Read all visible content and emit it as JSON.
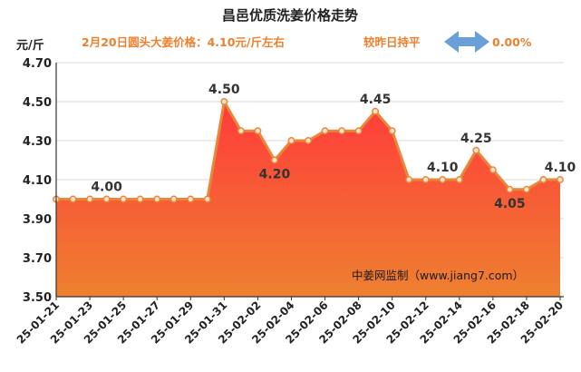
{
  "header": {
    "title": "昌邑优质洗姜价格走势",
    "price_note": "2月20日圆头大姜价格：4.10元/斤左右",
    "compare_label": "较昨日持平",
    "change_value": "0.00%"
  },
  "watermark": "中姜网监制（www.jiang7.com）",
  "colors": {
    "line": "#e8863a",
    "marker_fill": "#fbe3cc",
    "area_top": "#ff3b3b",
    "area_bottom": "#ee8030",
    "grid": "#d8d8d8",
    "arrow": "#6a9fd8",
    "subtitle": "#ee7f2d"
  },
  "icons": {
    "change_indicator": "double-arrow-icon"
  },
  "chart_data": {
    "type": "area",
    "title": "昌邑优质洗姜价格走势",
    "ylabel": "元/斤",
    "xlabel": "",
    "ylim": [
      3.5,
      4.7
    ],
    "y_ticks": [
      "3.50",
      "3.70",
      "3.90",
      "4.10",
      "4.30",
      "4.50",
      "4.70"
    ],
    "x": [
      "25-01-21",
      "25-01-22",
      "25-01-23",
      "25-01-24",
      "25-01-25",
      "25-01-26",
      "25-01-27",
      "25-01-28",
      "25-01-29",
      "25-01-30",
      "25-01-31",
      "25-02-01",
      "25-02-02",
      "25-02-03",
      "25-02-04",
      "25-02-05",
      "25-02-06",
      "25-02-07",
      "25-02-08",
      "25-02-09",
      "25-02-10",
      "25-02-11",
      "25-02-12",
      "25-02-13",
      "25-02-14",
      "25-02-15",
      "25-02-16",
      "25-02-17",
      "25-02-18",
      "25-02-19",
      "25-02-20"
    ],
    "x_tick_labels": [
      "25-01-21",
      "25-01-23",
      "25-01-25",
      "25-01-27",
      "25-01-29",
      "25-01-31",
      "25-02-02",
      "25-02-04",
      "25-02-06",
      "25-02-08",
      "25-02-10",
      "25-02-12",
      "25-02-14",
      "25-02-16",
      "25-02-18",
      "25-02-20"
    ],
    "values": [
      4.0,
      4.0,
      4.0,
      4.0,
      4.0,
      4.0,
      4.0,
      4.0,
      4.0,
      4.0,
      4.5,
      4.35,
      4.35,
      4.2,
      4.3,
      4.3,
      4.35,
      4.35,
      4.35,
      4.45,
      4.35,
      4.1,
      4.1,
      4.1,
      4.1,
      4.25,
      4.15,
      4.05,
      4.05,
      4.1,
      4.1
    ],
    "data_labels": [
      {
        "index": 3,
        "text": "4.00",
        "pos": "above"
      },
      {
        "index": 10,
        "text": "4.50",
        "pos": "above"
      },
      {
        "index": 13,
        "text": "4.20",
        "pos": "below"
      },
      {
        "index": 19,
        "text": "4.45",
        "pos": "above"
      },
      {
        "index": 23,
        "text": "4.10",
        "pos": "above"
      },
      {
        "index": 25,
        "text": "4.25",
        "pos": "above"
      },
      {
        "index": 27,
        "text": "4.05",
        "pos": "below"
      },
      {
        "index": 30,
        "text": "4.10",
        "pos": "above"
      }
    ],
    "grid": true,
    "legend": "none"
  }
}
